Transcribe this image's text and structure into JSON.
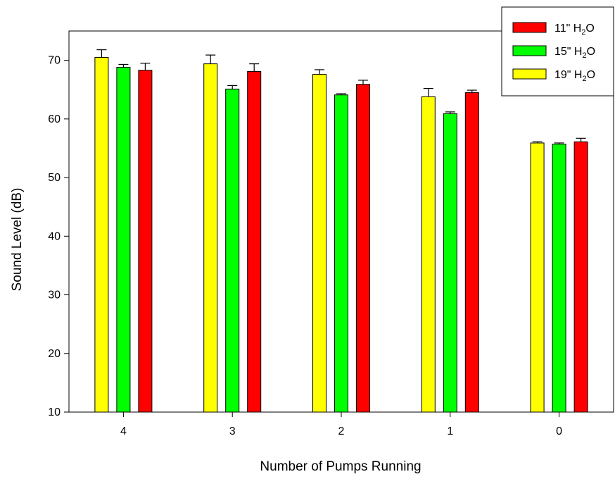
{
  "chart_data": {
    "type": "bar",
    "title": "",
    "xlabel": "Number of Pumps Running",
    "ylabel": "Sound Level (dB)",
    "categories": [
      "4",
      "3",
      "2",
      "1",
      "0"
    ],
    "ylim": [
      10,
      75
    ],
    "yticks": [
      10,
      20,
      30,
      40,
      50,
      60,
      70
    ],
    "grid": false,
    "legend_position": "top-right",
    "series": [
      {
        "name": "19\" H2O",
        "label_main": "19\" H",
        "label_sub": "2",
        "label_tail": "O",
        "color": "#ffff00",
        "values": [
          70.5,
          69.4,
          67.6,
          63.8,
          55.9
        ],
        "errors": [
          1.3,
          1.5,
          0.8,
          1.4,
          0.2
        ]
      },
      {
        "name": "15\" H2O",
        "label_main": "15\" H",
        "label_sub": "2",
        "label_tail": "O",
        "color": "#00ff00",
        "values": [
          68.8,
          65.1,
          64.1,
          60.9,
          55.7
        ],
        "errors": [
          0.5,
          0.6,
          0.2,
          0.3,
          0.2
        ]
      },
      {
        "name": "11\" H2O",
        "label_main": "11\" H",
        "label_sub": "2",
        "label_tail": "O",
        "color": "#ff0000",
        "values": [
          68.3,
          68.1,
          65.9,
          64.5,
          56.1
        ],
        "errors": [
          1.2,
          1.3,
          0.7,
          0.4,
          0.6
        ]
      }
    ],
    "legend_order": [
      2,
      1,
      0
    ]
  }
}
